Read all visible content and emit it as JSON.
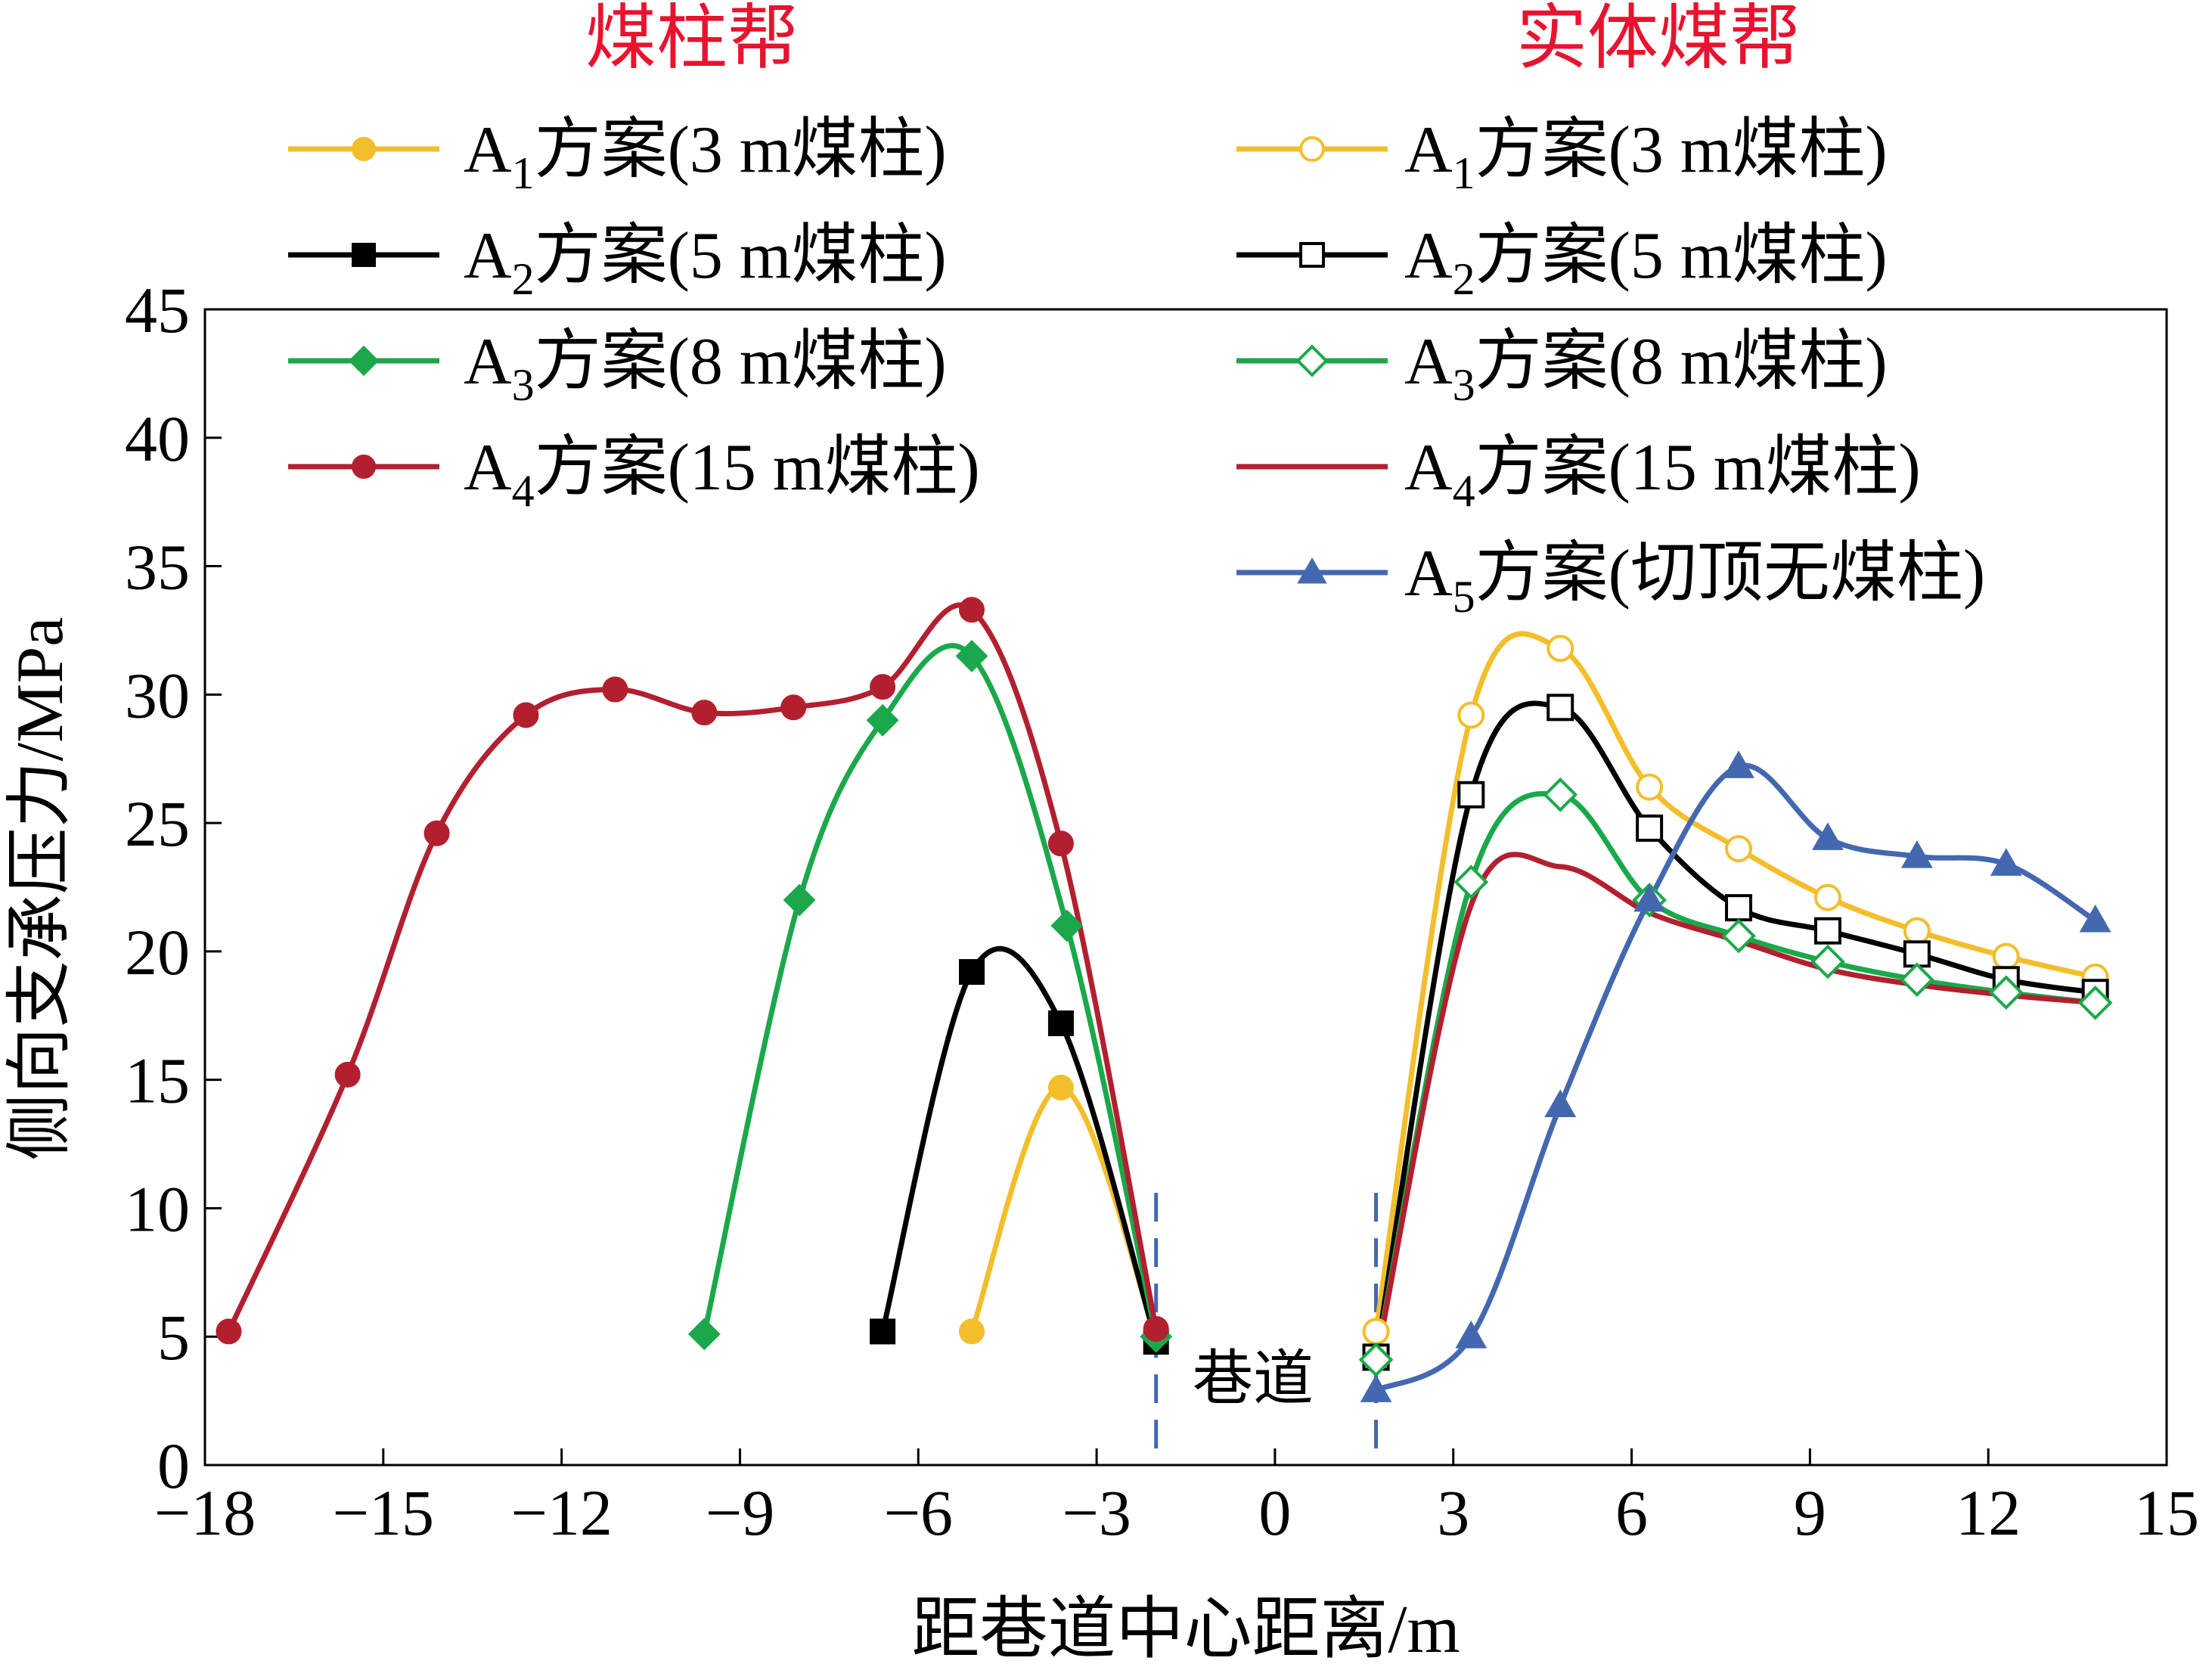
{
  "chart_data": {
    "type": "line",
    "group_titles": {
      "left": "煤柱帮",
      "right": "实体煤帮"
    },
    "xlabel": "距巷道中心距离/m",
    "ylabel": "侧向支承压力/MPa",
    "xlim": [
      -18,
      15
    ],
    "ylim": [
      0,
      45
    ],
    "xticks": [
      "−18",
      "−15",
      "−12",
      "−9",
      "−6",
      "−3",
      "0",
      "3",
      "6",
      "9",
      "12",
      "15"
    ],
    "yticks": [
      "0",
      "5",
      "10",
      "15",
      "20",
      "25",
      "30",
      "35",
      "40",
      "45"
    ],
    "annotation": "巷道",
    "roadway_bounds_x": [
      -2,
      1.7
    ],
    "colors": {
      "A1": "#F2BE2C",
      "A2": "#000000",
      "A3": "#1BA84A",
      "A4": "#B22030",
      "A5": "#4468B0",
      "title": "#E8132E"
    },
    "legend_left": [
      {
        "sub": "1",
        "suffix": "方案(3 m煤柱)",
        "series": "A1-pillar"
      },
      {
        "sub": "2",
        "suffix": "方案(5 m煤柱)",
        "series": "A2-pillar"
      },
      {
        "sub": "3",
        "suffix": "方案(8 m煤柱)",
        "series": "A3-pillar"
      },
      {
        "sub": "4",
        "suffix": "方案(15 m煤柱)",
        "series": "A4-pillar"
      }
    ],
    "legend_right": [
      {
        "sub": "1",
        "suffix": "方案(3 m煤柱)",
        "series": "A1-solid"
      },
      {
        "sub": "2",
        "suffix": "方案(5 m煤柱)",
        "series": "A2-solid"
      },
      {
        "sub": "3",
        "suffix": "方案(8 m煤柱)",
        "series": "A3-solid"
      },
      {
        "sub": "4",
        "suffix": "方案(15 m煤柱)",
        "series": "A4-solid"
      },
      {
        "sub": "5",
        "suffix": "方案(切顶无煤柱)",
        "series": "A5-solid"
      }
    ],
    "series": [
      {
        "id": "A1-pillar",
        "color": "#F2BE2C",
        "marker": "circle",
        "filled": true,
        "x": [
          -5.1,
          -3.6,
          -2.0
        ],
        "y": [
          5.2,
          14.7,
          5.0
        ]
      },
      {
        "id": "A2-pillar",
        "color": "#000000",
        "marker": "square",
        "filled": true,
        "x": [
          -6.6,
          -5.1,
          -3.6,
          -2.0
        ],
        "y": [
          5.2,
          19.2,
          17.2,
          4.8
        ]
      },
      {
        "id": "A3-pillar",
        "color": "#1BA84A",
        "marker": "diamond",
        "filled": true,
        "x": [
          -9.6,
          -8.0,
          -6.6,
          -5.1,
          -3.5,
          -2.0
        ],
        "y": [
          5.1,
          22.0,
          29.0,
          31.5,
          21.0,
          5.0
        ]
      },
      {
        "id": "A4-pillar",
        "color": "#B22030",
        "marker": "circle",
        "filled": true,
        "x": [
          -17.6,
          -15.6,
          -14.1,
          -12.6,
          -11.1,
          -9.6,
          -8.1,
          -6.6,
          -5.1,
          -3.6,
          -2.0
        ],
        "y": [
          5.2,
          15.2,
          24.6,
          29.2,
          30.2,
          29.3,
          29.5,
          30.3,
          33.3,
          24.2,
          5.3
        ]
      },
      {
        "id": "A1-solid",
        "color": "#F2BE2C",
        "marker": "circle",
        "filled": false,
        "x": [
          1.7,
          3.3,
          4.8,
          6.3,
          7.8,
          9.3,
          10.8,
          12.3,
          13.8
        ],
        "y": [
          5.2,
          29.2,
          31.8,
          26.4,
          24.0,
          22.1,
          20.8,
          19.8,
          19.0
        ]
      },
      {
        "id": "A2-solid",
        "color": "#000000",
        "marker": "square",
        "filled": false,
        "x": [
          1.7,
          3.3,
          4.8,
          6.3,
          7.8,
          9.3,
          10.8,
          12.3,
          13.8
        ],
        "y": [
          4.2,
          26.1,
          29.5,
          24.8,
          21.7,
          20.8,
          19.9,
          18.9,
          18.4
        ]
      },
      {
        "id": "A3-solid",
        "color": "#1BA84A",
        "marker": "diamond",
        "filled": false,
        "x": [
          1.7,
          3.3,
          4.8,
          6.3,
          7.8,
          9.3,
          10.8,
          12.3,
          13.8
        ],
        "y": [
          4.1,
          22.7,
          26.1,
          22.0,
          20.6,
          19.6,
          18.9,
          18.4,
          18.0
        ]
      },
      {
        "id": "A4-solid",
        "color": "#B22030",
        "marker": "none",
        "filled": false,
        "x": [
          1.7,
          3.3,
          4.8,
          6.3,
          7.8,
          9.3,
          10.8,
          12.3,
          13.8
        ],
        "y": [
          4.0,
          21.8,
          23.3,
          21.5,
          20.4,
          19.3,
          18.7,
          18.3,
          18.0
        ]
      },
      {
        "id": "A5-solid",
        "color": "#4468B0",
        "marker": "triangle",
        "filled": true,
        "x": [
          1.7,
          3.3,
          4.8,
          6.3,
          7.8,
          9.3,
          10.8,
          12.3,
          13.8
        ],
        "y": [
          2.9,
          5.0,
          14.0,
          22.0,
          27.2,
          24.4,
          23.7,
          23.4,
          21.2
        ]
      }
    ]
  }
}
